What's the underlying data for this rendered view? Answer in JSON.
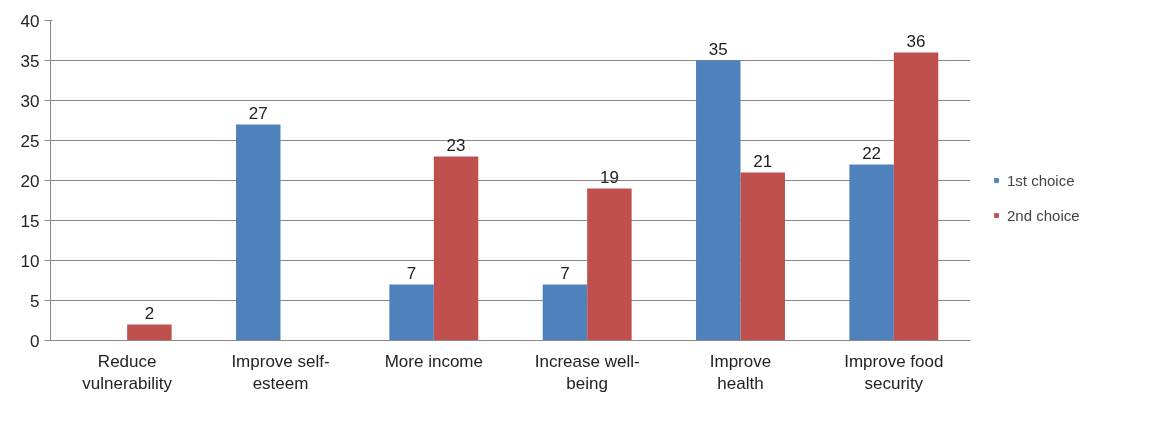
{
  "chart_data": {
    "type": "bar",
    "categories": [
      "Reduce\nvulnerability",
      "Improve self-\nesteem",
      "More income",
      "Increase well-\nbeing",
      "Improve\nhealth",
      "Improve food\nsecurity"
    ],
    "series": [
      {
        "name": "1st choice",
        "color": "#4f81bd",
        "values": [
          null,
          27,
          7,
          7,
          35,
          22
        ]
      },
      {
        "name": "2nd choice",
        "color": "#c0504d",
        "values": [
          2,
          null,
          23,
          19,
          21,
          36
        ]
      }
    ],
    "ylim": [
      0,
      40
    ],
    "yticks": [
      0,
      5,
      10,
      15,
      20,
      25,
      30,
      35,
      40
    ],
    "grid": "y",
    "legend": "right",
    "data_labels": true
  }
}
